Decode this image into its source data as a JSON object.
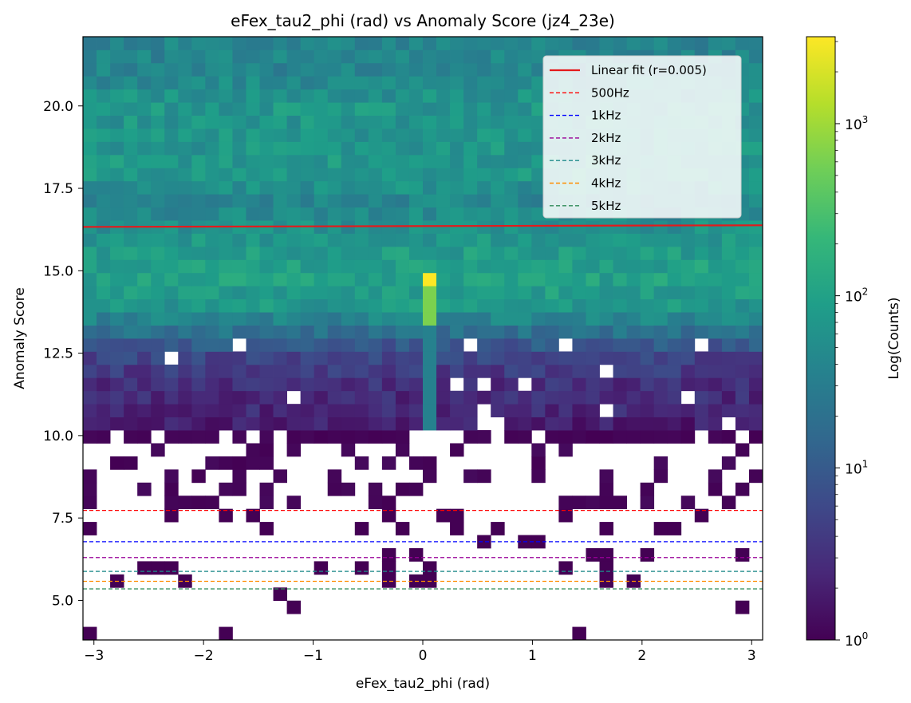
{
  "chart_data": {
    "type": "heatmap",
    "title": "eFex_tau2_phi (rad) vs Anomaly Score (jz4_23e)",
    "xlabel": "eFex_tau2_phi (rad)",
    "ylabel": "Anomaly Score",
    "xlim": [
      -3.1,
      3.1
    ],
    "ylim": [
      3.8,
      22.1
    ],
    "x_ticks": [
      -3,
      -2,
      -1,
      0,
      1,
      2,
      3
    ],
    "x_tick_labels": [
      "−3",
      "−2",
      "−1",
      "0",
      "1",
      "2",
      "3"
    ],
    "y_ticks": [
      5.0,
      7.5,
      10.0,
      12.5,
      15.0,
      17.5,
      20.0
    ],
    "y_tick_labels": [
      "5.0",
      "7.5",
      "10.0",
      "12.5",
      "15.0",
      "17.5",
      "20.0"
    ],
    "colorbar": {
      "label": "Log(Counts)",
      "scale": "log",
      "colormap": "viridis",
      "range": [
        1,
        3200
      ],
      "ticks": [
        {
          "value": 1,
          "base": "10",
          "exp": "0"
        },
        {
          "value": 10,
          "base": "10",
          "exp": "1"
        },
        {
          "value": 100,
          "base": "10",
          "exp": "2"
        },
        {
          "value": 1000,
          "base": "10",
          "exp": "3"
        }
      ]
    },
    "bins": {
      "x_count": 50,
      "y_count": 46
    },
    "profile_log10_counts": [
      {
        "y": 21.0,
        "v": 1.6
      },
      {
        "y": 20.0,
        "v": 1.85
      },
      {
        "y": 19.0,
        "v": 1.8
      },
      {
        "y": 18.0,
        "v": 1.9
      },
      {
        "y": 17.0,
        "v": 1.6
      },
      {
        "y": 16.0,
        "v": 1.85
      },
      {
        "y": 15.0,
        "v": 2.0
      },
      {
        "y": 14.0,
        "v": 1.9
      },
      {
        "y": 13.2,
        "v": 1.35
      },
      {
        "y": 12.5,
        "v": 0.75
      },
      {
        "y": 11.5,
        "v": 0.45
      },
      {
        "y": 10.5,
        "v": 0.35
      },
      {
        "y": 10.0,
        "v": 0.1
      }
    ],
    "central_spike": {
      "x": 0.06,
      "y_peak": 14.7,
      "peak_counts": 3200
    },
    "series": [
      {
        "name": "Linear fit (r=0.005)",
        "type": "line",
        "style": "solid",
        "color": "#e41a1c",
        "x": [
          -3.1,
          3.1
        ],
        "y": [
          16.33,
          16.38
        ]
      },
      {
        "name": "500Hz",
        "type": "hline",
        "style": "dashed",
        "color": "#ff0000",
        "y": 7.73
      },
      {
        "name": "1kHz",
        "type": "hline",
        "style": "dashed",
        "color": "#0000ff",
        "y": 6.78
      },
      {
        "name": "2kHz",
        "type": "hline",
        "style": "dashed",
        "color": "#990099",
        "y": 6.3
      },
      {
        "name": "3kHz",
        "type": "hline",
        "style": "dashed",
        "color": "#1f8a8a",
        "y": 5.88
      },
      {
        "name": "4kHz",
        "type": "hline",
        "style": "dashed",
        "color": "#ff8c00",
        "y": 5.58
      },
      {
        "name": "5kHz",
        "type": "hline",
        "style": "dashed",
        "color": "#2e8b57",
        "y": 5.35
      }
    ],
    "legend": {
      "position": "top-right"
    }
  }
}
